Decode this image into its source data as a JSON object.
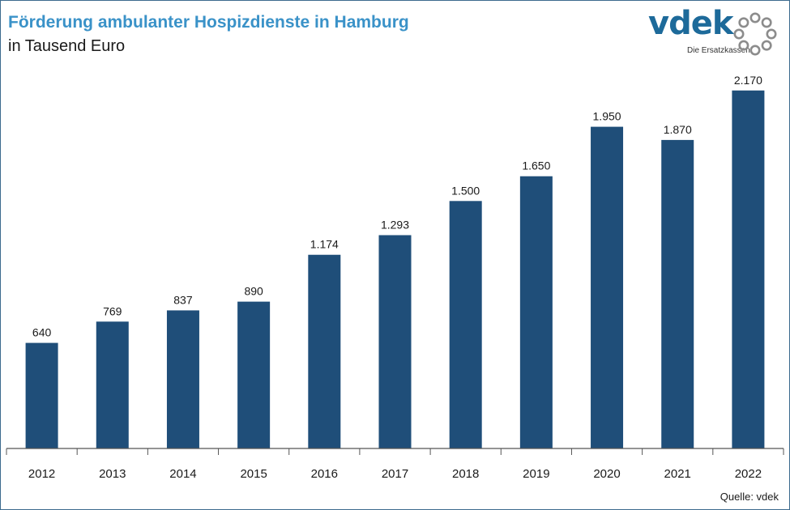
{
  "header": {
    "title": "Förderung ambulanter Hospizdienste in Hamburg",
    "subtitle": "in Tausend Euro"
  },
  "logo": {
    "word": "vdek",
    "tagline": "Die Ersatzkassen",
    "ring_icon": "dots-ring-icon"
  },
  "footer": {
    "source": "Quelle: vdek"
  },
  "colors": {
    "bar": "#1f4e79",
    "title": "#3a92c8",
    "logo": "#1d6a9a",
    "logo_ring": "#8c8c8c"
  },
  "chart_data": {
    "type": "bar",
    "categories": [
      "2012",
      "2013",
      "2014",
      "2015",
      "2016",
      "2017",
      "2018",
      "2019",
      "2020",
      "2021",
      "2022"
    ],
    "values": [
      640,
      769,
      837,
      890,
      1174,
      1293,
      1500,
      1650,
      1950,
      1870,
      2170
    ],
    "data_labels": [
      "640",
      "769",
      "837",
      "890",
      "1.174",
      "1.293",
      "1.500",
      "1.650",
      "1.950",
      "1.870",
      "2.170"
    ],
    "title": "Förderung ambulanter Hospizdienste in Hamburg",
    "xlabel": "",
    "ylabel": "",
    "ylim": [
      0,
      2400
    ],
    "grid": false,
    "legend": "none"
  }
}
